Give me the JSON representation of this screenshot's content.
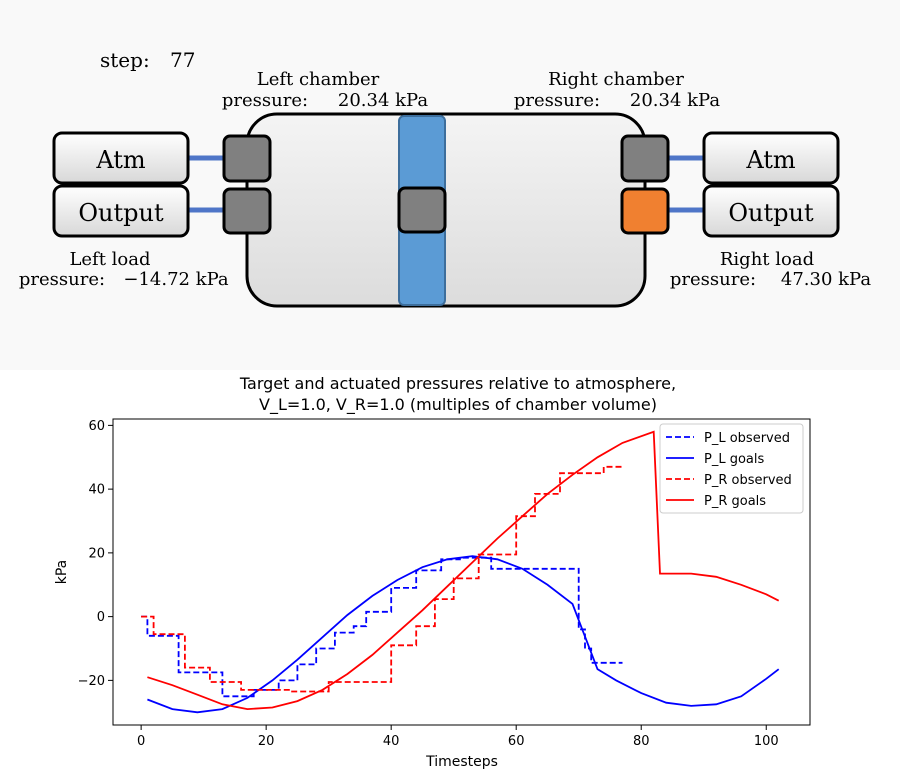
{
  "simulation": {
    "step_label": "step:",
    "step_value": "77",
    "left_chamber": {
      "title": "Left chamber",
      "pressure_label": "pressure:",
      "pressure_value": "20.34 kPa"
    },
    "right_chamber": {
      "title": "Right chamber",
      "pressure_label": "pressure:",
      "pressure_value": "20.34 kPa"
    },
    "left_load": {
      "title": "Left load",
      "pressure_label": "pressure:",
      "pressure_value": "−14.72 kPa"
    },
    "right_load": {
      "title": "Right load",
      "pressure_label": "pressure:",
      "pressure_value": "47.30 kPa"
    },
    "ports": {
      "left_atm": "Atm",
      "left_output": "Output",
      "right_atm": "Atm",
      "right_output": "Output"
    },
    "colors": {
      "background": "#f9f9f9",
      "chamber_fill": "#e6e6e6",
      "piston": "#5b9bd5",
      "valve_closed": "#808080",
      "valve_active": "#f08030",
      "pipe": "#4f76c8"
    }
  },
  "chart_data": {
    "type": "line",
    "title": "Target and actuated pressures relative to atmosphere,\nV_L=1.0,     V_R=1.0 (multiples of chamber volume)",
    "title_lines": [
      "Target and actuated pressures relative to atmosphere,",
      "V_L=1.0,     V_R=1.0 (multiples of chamber volume)"
    ],
    "xlabel": "Timesteps",
    "ylabel": "kPa",
    "xlim": [
      -4.5,
      107
    ],
    "ylim": [
      -34,
      62
    ],
    "xticks": [
      0,
      20,
      40,
      60,
      80,
      100
    ],
    "yticks": [
      -20,
      0,
      20,
      40,
      60
    ],
    "legend_position": "top-right",
    "series": [
      {
        "name": "P_L observed",
        "color": "#0000ff",
        "dash": true,
        "step": true,
        "x": [
          0,
          1,
          2,
          3,
          4,
          5,
          6,
          7,
          8,
          9,
          10,
          11,
          12,
          13,
          14,
          15,
          16,
          17,
          18,
          19,
          20,
          21,
          22,
          23,
          24,
          25,
          26,
          27,
          28,
          29,
          30,
          31,
          32,
          33,
          34,
          35,
          36,
          37,
          38,
          39,
          40,
          41,
          42,
          43,
          44,
          45,
          46,
          47,
          48,
          49,
          50,
          51,
          52,
          53,
          54,
          55,
          56,
          57,
          58,
          59,
          60,
          61,
          62,
          63,
          64,
          65,
          66,
          67,
          68,
          69,
          70,
          71,
          72,
          73,
          74,
          75,
          76,
          77
        ],
        "y": [
          0,
          -6,
          -6,
          -6,
          -6,
          -6,
          -17.5,
          -17.5,
          -17.5,
          -17.5,
          -17.5,
          -17.5,
          -17.5,
          -25,
          -25,
          -25,
          -25,
          -25,
          -23,
          -23,
          -23,
          -23,
          -20,
          -20,
          -20,
          -15,
          -15,
          -15,
          -10,
          -10,
          -10,
          -5,
          -5,
          -5,
          -3,
          -3,
          1.5,
          1.5,
          1.5,
          1.5,
          9,
          9,
          9,
          9,
          14.5,
          14.5,
          14.5,
          14.5,
          18,
          18,
          18,
          18.5,
          18.5,
          18.5,
          18.5,
          18.5,
          15,
          15,
          15,
          15,
          15,
          15,
          15,
          15,
          15,
          15,
          15,
          15,
          15,
          15,
          -4,
          -10,
          -14.5,
          -14.5,
          -14.5,
          -14.5,
          -14.5,
          -14.5
        ]
      },
      {
        "name": "P_L goals",
        "color": "#0000ff",
        "dash": false,
        "step": false,
        "x": [
          1,
          5,
          9,
          13,
          17,
          21,
          25,
          29,
          33,
          37,
          41,
          45,
          49,
          53,
          57,
          61,
          65,
          69,
          73,
          76,
          80,
          84,
          88,
          92,
          96,
          100,
          102
        ],
        "y": [
          -26,
          -29,
          -30,
          -29,
          -25.5,
          -20,
          -13.5,
          -6.5,
          0.5,
          6.5,
          11.5,
          15.5,
          18,
          19,
          18,
          15,
          10,
          4,
          -16.5,
          -20,
          -24,
          -27,
          -28,
          -27.5,
          -25,
          -19.5,
          -16.5
        ]
      },
      {
        "name": "P_R observed",
        "color": "#ff0000",
        "dash": true,
        "step": true,
        "x": [
          0,
          1,
          2,
          3,
          4,
          5,
          6,
          7,
          8,
          9,
          10,
          11,
          12,
          13,
          14,
          15,
          16,
          17,
          18,
          19,
          20,
          21,
          22,
          23,
          24,
          25,
          26,
          27,
          28,
          29,
          30,
          31,
          32,
          33,
          34,
          35,
          36,
          37,
          38,
          39,
          40,
          41,
          42,
          43,
          44,
          45,
          46,
          47,
          48,
          49,
          50,
          51,
          52,
          53,
          54,
          55,
          56,
          57,
          58,
          59,
          60,
          61,
          62,
          63,
          64,
          65,
          66,
          67,
          68,
          69,
          70,
          71,
          72,
          73,
          74,
          75,
          76,
          77
        ],
        "y": [
          0,
          0,
          -5.5,
          -5.5,
          -5.5,
          -5.5,
          -5.5,
          -16,
          -16,
          -16,
          -16,
          -20.5,
          -20.5,
          -20.5,
          -20.5,
          -20.5,
          -23,
          -23,
          -23,
          -23,
          -23,
          -23,
          -23,
          -23,
          -23.5,
          -23.5,
          -23.5,
          -23.5,
          -23.5,
          -23.5,
          -20.5,
          -20.5,
          -20.5,
          -20.5,
          -20.5,
          -20.5,
          -20.5,
          -20.5,
          -20.5,
          -20.5,
          -9,
          -9,
          -9,
          -9,
          -3,
          -3,
          -3,
          5.5,
          5.5,
          5.5,
          12,
          12,
          12,
          12,
          19.5,
          19.5,
          19.5,
          19.5,
          19.5,
          19.5,
          31.5,
          31.5,
          31.5,
          38.5,
          38.5,
          38.5,
          38.5,
          45,
          45,
          45,
          45,
          45,
          45,
          45,
          47,
          47,
          47,
          47
        ]
      },
      {
        "name": "P_R goals",
        "color": "#ff0000",
        "dash": false,
        "step": false,
        "x": [
          1,
          5,
          9,
          13,
          17,
          21,
          25,
          29,
          33,
          37,
          41,
          45,
          49,
          53,
          57,
          61,
          65,
          69,
          73,
          77,
          82,
          83,
          85,
          88,
          92,
          96,
          100,
          102
        ],
        "y": [
          -19,
          -21.5,
          -24.5,
          -27.5,
          -29,
          -28.5,
          -26.5,
          -23,
          -18,
          -12,
          -5,
          2,
          9.5,
          17,
          24.5,
          31.5,
          38.5,
          44.5,
          50,
          54.5,
          58,
          13.5,
          13.5,
          13.5,
          12.5,
          10,
          7,
          5
        ]
      }
    ]
  }
}
